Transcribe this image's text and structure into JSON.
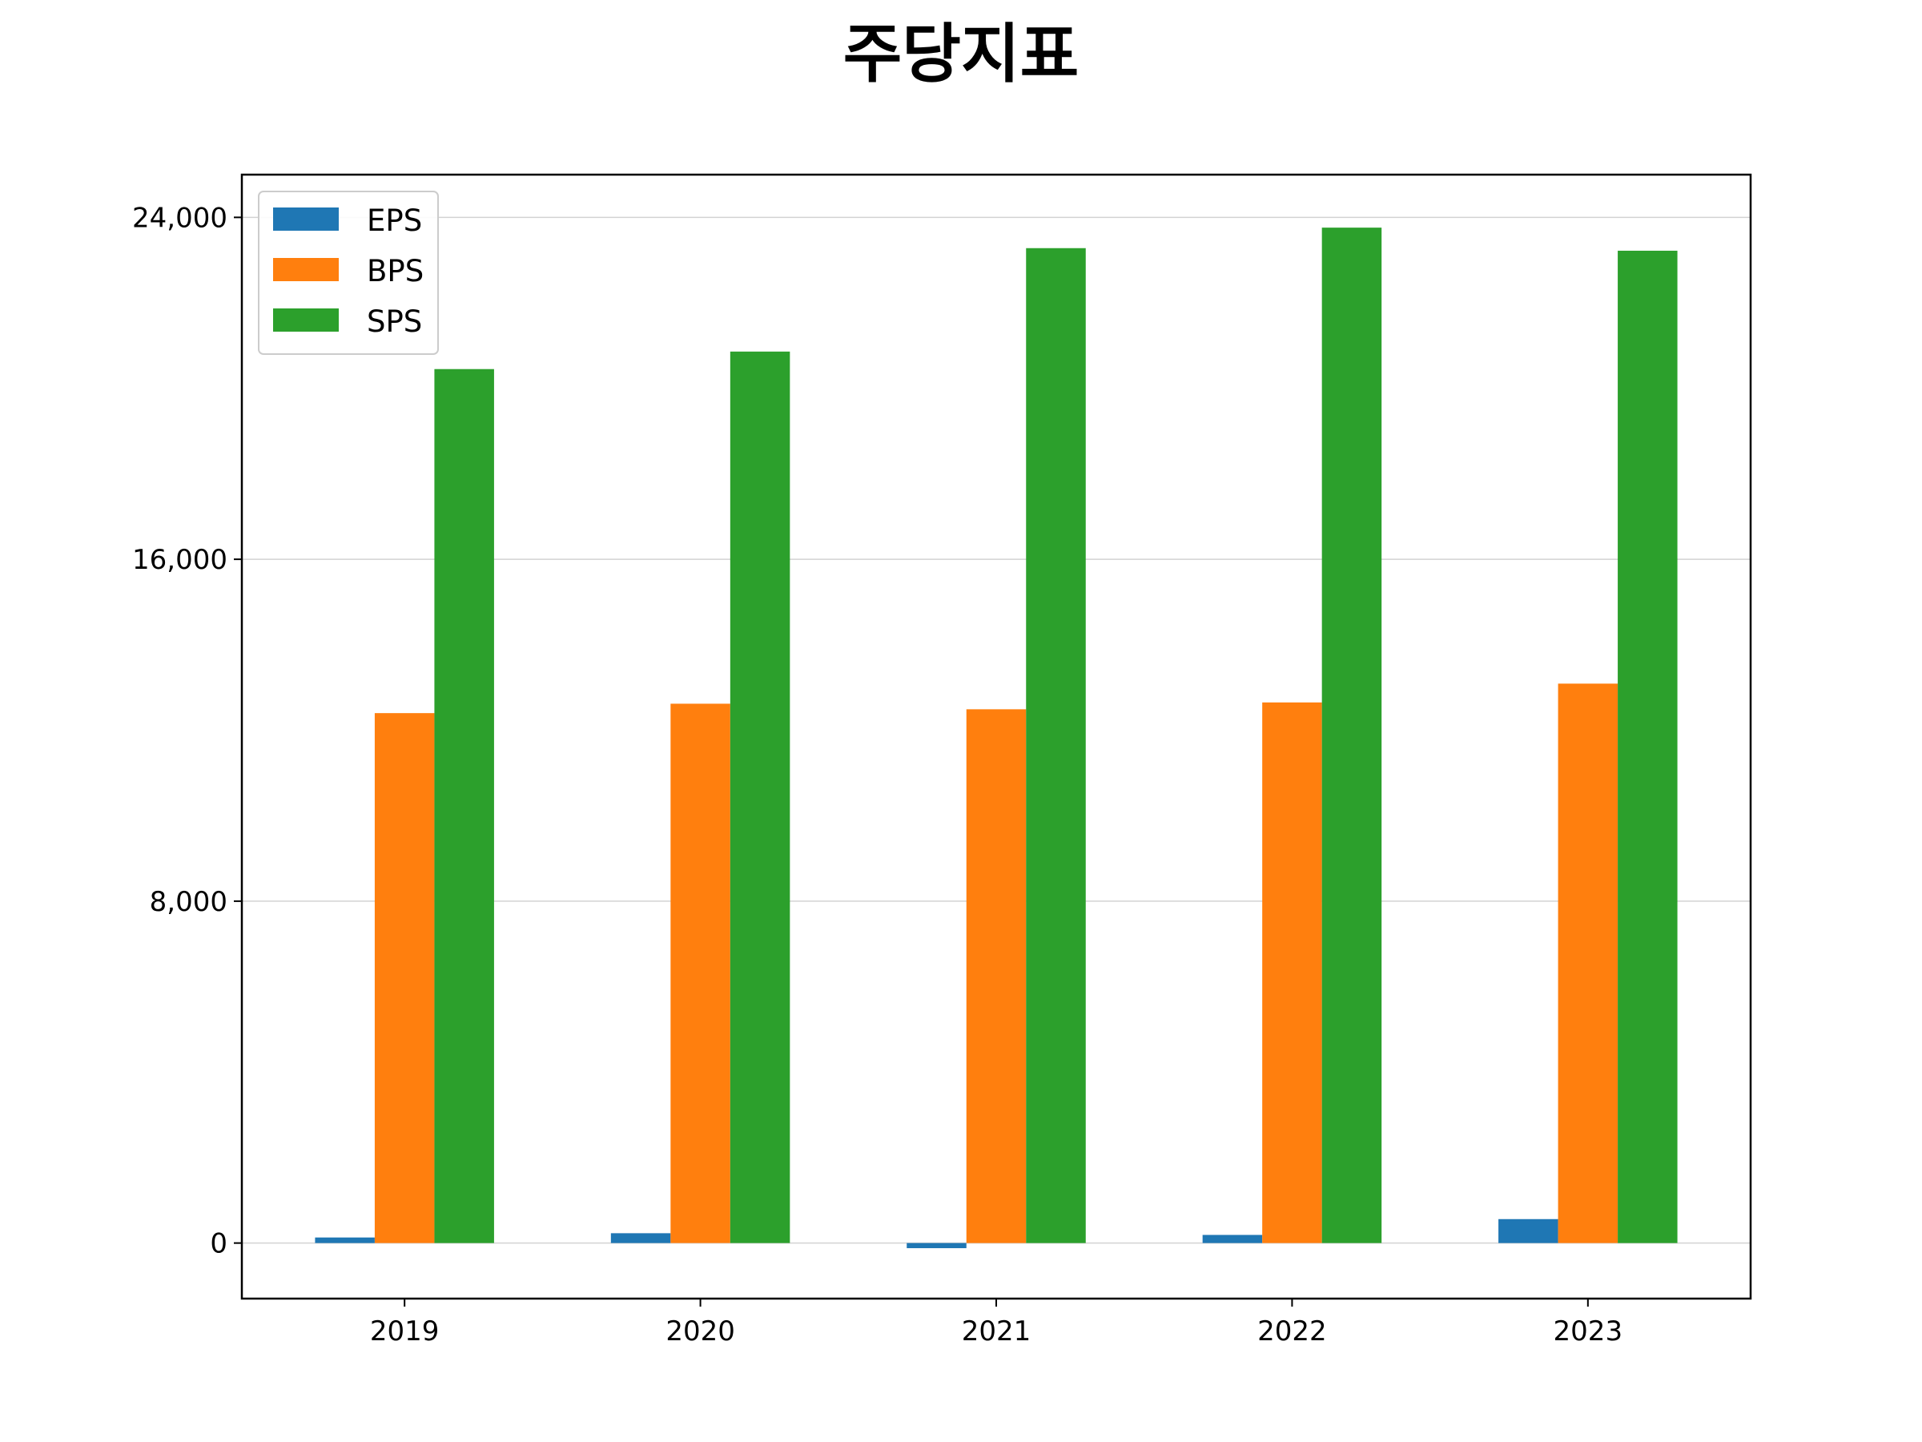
{
  "chart_data": {
    "type": "bar",
    "title": "주당지표",
    "xlabel": "",
    "ylabel": "",
    "categories": [
      "2019",
      "2020",
      "2021",
      "2022",
      "2023"
    ],
    "series": [
      {
        "name": "EPS",
        "color": "#1f77b4",
        "values": [
          130,
          230,
          -120,
          190,
          560
        ]
      },
      {
        "name": "BPS",
        "color": "#ff7f0e",
        "values": [
          12400,
          12620,
          12490,
          12650,
          13090
        ]
      },
      {
        "name": "SPS",
        "color": "#2ca02c",
        "values": [
          20450,
          20860,
          23280,
          23760,
          23220
        ]
      }
    ],
    "ylim": [
      -1300,
      25000
    ],
    "yticks": [
      0,
      8000,
      16000,
      24000
    ],
    "ytick_labels": [
      "0",
      "8,000",
      "16,000",
      "24,000"
    ],
    "grid": {
      "y": true,
      "x": false,
      "color": "#d3d3d3"
    },
    "legend": {
      "position": "upper-left"
    }
  }
}
